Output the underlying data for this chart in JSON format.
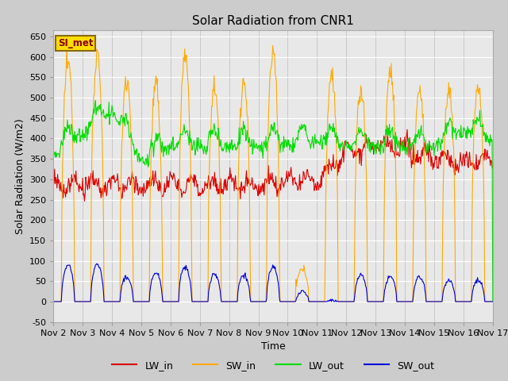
{
  "title": "Solar Radiation from CNR1",
  "xlabel": "Time",
  "ylabel": "Solar Radiation (W/m2)",
  "ylim": [
    -50,
    665
  ],
  "bg_color": "#cccccc",
  "plot_bg_color": "#e8e8e8",
  "annotation_text": "SI_met",
  "annotation_bg": "#ffdd00",
  "annotation_border": "#8b6914",
  "annotation_text_color": "#8b0000",
  "colors": {
    "LW_in": "#dd0000",
    "SW_in": "#ffaa00",
    "LW_out": "#00dd00",
    "SW_out": "#0000dd"
  },
  "linewidth": 0.8,
  "n_days": 15,
  "start_day": 2,
  "pts_per_day": 48
}
